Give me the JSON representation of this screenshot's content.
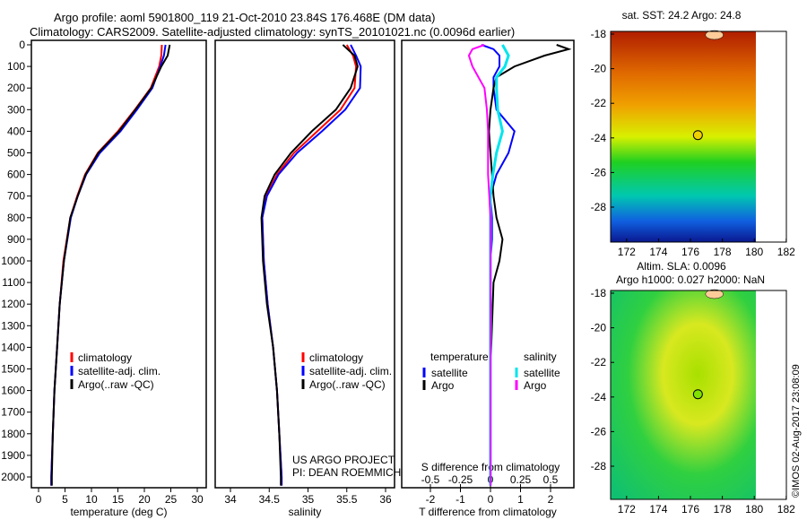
{
  "title_line1": "Argo profile: aoml 5901800_119 21-Oct-2010 23.84S 176.468E (DM data)",
  "title_line2": "Climatology: CARS2009. Satellite-adjusted climatology: synTS_20101021.nc (0.0096d earlier)",
  "credit": "©IMOS 02-Aug-2017 23:08:09",
  "project_line1": "US ARGO PROJECT",
  "project_line2": "PI: DEAN ROEMMICH",
  "colors": {
    "climatology": "#ff0000",
    "satellite": "#0000ff",
    "argo": "#000000",
    "sal_satellite": "#00e5ee",
    "sal_argo": "#ff00ff"
  },
  "chart_data": [
    {
      "type": "line",
      "xlabel": "temperature (deg C)",
      "ylabel": "",
      "xlim": [
        -1,
        31
      ],
      "ylim": [
        2060,
        0
      ],
      "xticks": [
        0,
        5,
        10,
        15,
        20,
        25,
        30
      ],
      "yticks": [
        0,
        100,
        200,
        300,
        400,
        500,
        600,
        700,
        800,
        900,
        1000,
        1100,
        1200,
        1300,
        1400,
        1500,
        1600,
        1700,
        1800,
        1900,
        2000
      ],
      "depth": [
        0,
        50,
        100,
        200,
        300,
        400,
        500,
        600,
        700,
        800,
        1000,
        1200,
        1400,
        1600,
        1800,
        2000,
        2040
      ],
      "legend": [
        "climatology",
        "satellite-adj. clim.",
        "Argo(..raw -QC)"
      ],
      "series": [
        {
          "name": "climatology",
          "color": "#ff0000",
          "values": [
            23.3,
            23.2,
            22.8,
            21.2,
            18.2,
            15.0,
            11.2,
            8.8,
            7.3,
            6.0,
            4.7,
            4.0,
            3.5,
            3.0,
            2.7,
            2.4,
            2.4
          ]
        },
        {
          "name": "satellite-adj. clim.",
          "color": "#0000ff",
          "values": [
            24.0,
            23.7,
            23.0,
            21.5,
            18.6,
            15.5,
            11.6,
            9.0,
            7.4,
            6.1,
            4.8,
            4.0,
            3.5,
            3.0,
            2.7,
            2.4,
            2.4
          ]
        },
        {
          "name": "Argo(..raw -QC)",
          "color": "#000000",
          "values": [
            24.8,
            24.4,
            23.2,
            21.3,
            18.3,
            15.2,
            11.3,
            8.9,
            7.4,
            6.0,
            4.8,
            4.0,
            3.5,
            3.0,
            2.7,
            2.5,
            2.5
          ]
        }
      ]
    },
    {
      "type": "line",
      "xlabel": "salinity",
      "ylabel": "",
      "xlim": [
        33.8,
        36.1
      ],
      "ylim": [
        2060,
        0
      ],
      "xticks": [
        34,
        34.5,
        35,
        35.5,
        36
      ],
      "depth": [
        0,
        50,
        100,
        200,
        300,
        400,
        500,
        600,
        700,
        800,
        1000,
        1200,
        1400,
        1600,
        1800,
        2000,
        2040
      ],
      "legend": [
        "climatology",
        "satellite-adj. clim.",
        "Argo(..raw -QC)"
      ],
      "series": [
        {
          "name": "climatology",
          "color": "#ff0000",
          "values": [
            35.5,
            35.58,
            35.62,
            35.6,
            35.42,
            35.12,
            34.82,
            34.6,
            34.46,
            34.41,
            34.43,
            34.48,
            34.55,
            34.6,
            34.63,
            34.66,
            34.66
          ]
        },
        {
          "name": "satellite-adj. clim.",
          "color": "#0000ff",
          "values": [
            35.55,
            35.62,
            35.68,
            35.67,
            35.48,
            35.18,
            34.86,
            34.62,
            34.47,
            34.41,
            34.43,
            34.48,
            34.55,
            34.6,
            34.63,
            34.66,
            34.66
          ]
        },
        {
          "name": "Argo(..raw -QC)",
          "color": "#000000",
          "values": [
            35.45,
            35.6,
            35.64,
            35.55,
            35.36,
            35.05,
            34.78,
            34.57,
            34.44,
            34.4,
            34.42,
            34.47,
            34.55,
            34.6,
            34.63,
            34.65,
            34.65
          ]
        }
      ]
    },
    {
      "type": "line",
      "xlabel": "T difference from climatology",
      "x2label": "S difference from climatology",
      "xlim": [
        -3,
        3
      ],
      "ylim": [
        2060,
        0
      ],
      "xticks": [
        -2,
        -1,
        0,
        1,
        2
      ],
      "x2ticks": [
        -0.5,
        -0.25,
        0,
        0.25,
        0.5
      ],
      "legend": {
        "temperature_title": "temperature",
        "salinity_title": "salinity",
        "items": [
          "satellite",
          "Argo",
          "satellite",
          "Argo"
        ]
      },
      "depth": [
        0,
        20,
        50,
        100,
        150,
        200,
        300,
        400,
        500,
        600,
        700,
        800,
        900,
        1000,
        1100,
        1300,
        1500,
        2040
      ],
      "series": [
        {
          "name": "temperature satellite",
          "color": "#0000ff",
          "units": "T",
          "values": [
            -0.3,
            0.1,
            0.3,
            0.3,
            0.1,
            0.1,
            0.2,
            0.8,
            0.6,
            0.2,
            0.0,
            0.05,
            0.05,
            0.0,
            0.0,
            0.0,
            0.0,
            0.0
          ]
        },
        {
          "name": "temperature Argo",
          "color": "#000000",
          "units": "T",
          "values": [
            2.2,
            2.6,
            1.8,
            0.8,
            0.2,
            0.1,
            0.0,
            -0.05,
            0.0,
            0.05,
            0.1,
            0.2,
            0.4,
            0.3,
            0.1,
            0.05,
            0.0,
            0.0
          ]
        },
        {
          "name": "salinity satellite",
          "color": "#00e5ee",
          "units": "S",
          "values": [
            0.1,
            0.12,
            0.15,
            0.12,
            0.05,
            0.05,
            0.06,
            0.1,
            0.05,
            0.02,
            0.0,
            0.0,
            0.0,
            0.0,
            0.0,
            0.0,
            0.0,
            0.0
          ]
        },
        {
          "name": "salinity Argo",
          "color": "#ff00ff",
          "units": "S",
          "values": [
            -0.05,
            -0.15,
            -0.18,
            -0.15,
            -0.1,
            -0.05,
            -0.03,
            -0.02,
            -0.02,
            -0.02,
            -0.01,
            0.0,
            0.0,
            0.0,
            0.0,
            0.0,
            0.0,
            0.0
          ]
        }
      ]
    },
    {
      "type": "heatmap",
      "title": "sat. SST: 24.2 Argo: 24.8",
      "xticks": [
        172,
        174,
        176,
        178,
        180,
        182
      ],
      "yticks": [
        -18,
        -20,
        -22,
        -24,
        -26,
        -28
      ],
      "float_position": {
        "lon": 176.468,
        "lat": -23.84
      }
    },
    {
      "type": "heatmap",
      "title_line1": "Altim. SLA: 0.0096",
      "title_line2": "Argo h1000: 0.027 h2000: NaN",
      "xticks": [
        172,
        174,
        176,
        178,
        180,
        182
      ],
      "yticks": [
        -18,
        -20,
        -22,
        -24,
        -26,
        -28
      ],
      "float_position": {
        "lon": 176.468,
        "lat": -23.84
      }
    }
  ]
}
